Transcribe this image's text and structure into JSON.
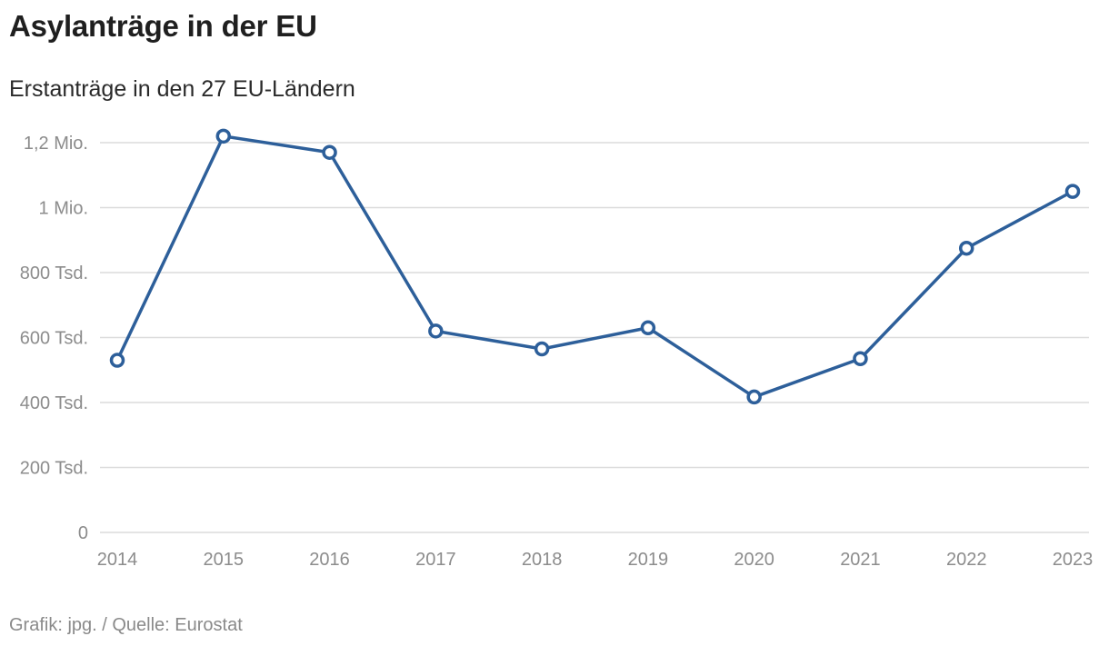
{
  "title": "Asylanträge in der EU",
  "subtitle": "Erstanträge in den 27 EU-Ländern",
  "footer": "Grafik: jpg. / Quelle: Eurostat",
  "colors": {
    "line": "#2d5f9a",
    "marker_fill": "#ffffff",
    "grid": "#dcdcdc",
    "tick_text": "#8c8c8c"
  },
  "chart_data": {
    "type": "line",
    "title": "Asylanträge in der EU",
    "subtitle": "Erstanträge in den 27 EU-Ländern",
    "xlabel": "",
    "ylabel": "",
    "x": [
      "2014",
      "2015",
      "2016",
      "2017",
      "2018",
      "2019",
      "2020",
      "2021",
      "2022",
      "2023"
    ],
    "series": [
      {
        "values": [
          530000,
          1220000,
          1170000,
          620000,
          565000,
          630000,
          417000,
          535000,
          875000,
          1050000
        ]
      }
    ],
    "ylim": [
      0,
      1200000
    ],
    "yticks": [
      {
        "value": 0,
        "label": "0"
      },
      {
        "value": 200000,
        "label": "200 Tsd."
      },
      {
        "value": 400000,
        "label": "400 Tsd."
      },
      {
        "value": 600000,
        "label": "600 Tsd."
      },
      {
        "value": 800000,
        "label": "800 Tsd."
      },
      {
        "value": 1000000,
        "label": "1 Mio."
      },
      {
        "value": 1200000,
        "label": "1,2 Mio."
      }
    ],
    "grid": true,
    "legend": "none"
  }
}
